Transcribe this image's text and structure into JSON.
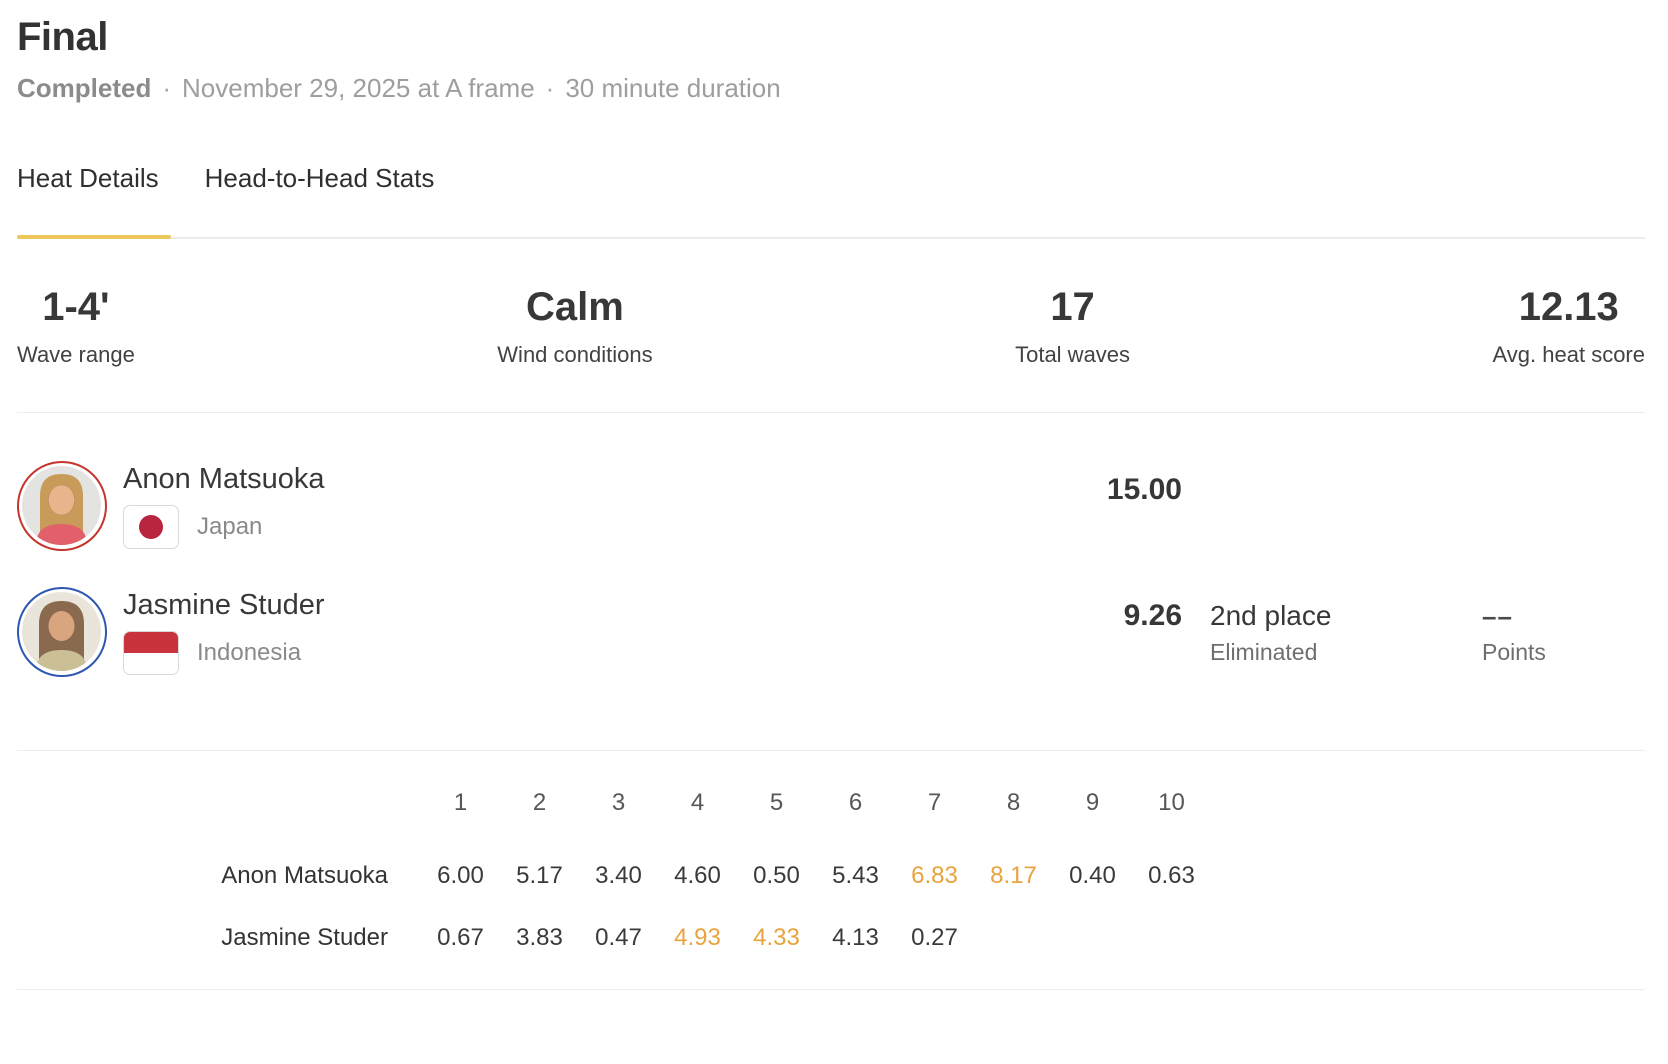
{
  "header": {
    "title": "Final",
    "status": "Completed",
    "separator": "·",
    "event_info": "November 29, 2025 at A frame",
    "duration": "30 minute duration"
  },
  "tabs": [
    {
      "label": "Heat Details",
      "active": true
    },
    {
      "label": "Head-to-Head Stats",
      "active": false
    }
  ],
  "stats": [
    {
      "value": "1-4'",
      "label": "Wave range"
    },
    {
      "value": "Calm",
      "label": "Wind conditions"
    },
    {
      "value": "17",
      "label": "Total waves"
    },
    {
      "value": "12.13",
      "label": "Avg. heat score"
    }
  ],
  "athletes": [
    {
      "name": "Anon Matsuoka",
      "country": "Japan",
      "flag_icon": "japan-flag-icon",
      "heat_score": "15.00",
      "place": "",
      "place_status": "",
      "points": "",
      "points_label": "",
      "ring_color": "#c5352c"
    },
    {
      "name": "Jasmine Studer",
      "country": "Indonesia",
      "flag_icon": "indonesia-flag-icon",
      "heat_score": "9.26",
      "place": "2nd place",
      "place_status": "Eliminated",
      "points": "––",
      "points_label": "Points",
      "ring_color": "#2d56b0"
    }
  ],
  "wave_table": {
    "columns": [
      "1",
      "2",
      "3",
      "4",
      "5",
      "6",
      "7",
      "8",
      "9",
      "10"
    ],
    "rows": [
      {
        "name": "Anon Matsuoka",
        "scores": [
          "6.00",
          "5.17",
          "3.40",
          "4.60",
          "0.50",
          "5.43",
          "6.83",
          "8.17",
          "0.40",
          "0.63"
        ],
        "top_score_indices": [
          6,
          7
        ]
      },
      {
        "name": "Jasmine Studer",
        "scores": [
          "0.67",
          "3.83",
          "0.47",
          "4.93",
          "4.33",
          "4.13",
          "0.27"
        ],
        "top_score_indices": [
          3,
          4
        ]
      }
    ]
  },
  "colors": {
    "accent_yellow": "#edc75a",
    "top_score_orange": "#e8a33d",
    "japan_flag_red": "#b9253f",
    "indonesia_flag_red": "#c8333e"
  }
}
